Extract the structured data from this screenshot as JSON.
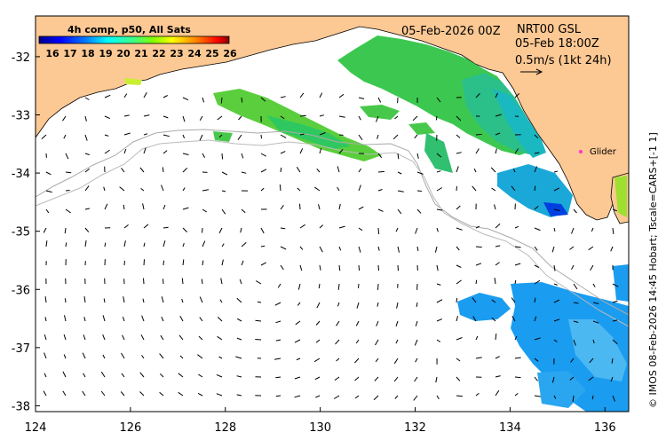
{
  "map": {
    "date_title": "05-Feb-2026 00Z",
    "product": "NRT00 GSL",
    "product_time": "05-Feb 18:00Z",
    "scale_text": "0.5m/s (1kt 24h)",
    "credit": "© IMOS 08-Feb-2026 14:45 Hobart; Tscale=CARS+[-1 1]",
    "glider_label": "Glider",
    "glider_color": "#ff33cc",
    "land_color": "#fcc893",
    "x_ticks": [
      "124",
      "126",
      "128",
      "130",
      "132",
      "134",
      "136"
    ],
    "y_ticks": [
      "-32",
      "-33",
      "-34",
      "-35",
      "-36",
      "-37",
      "-38"
    ],
    "lon_range": [
      124,
      136.5
    ],
    "lat_range": [
      -38.1,
      -31.3
    ],
    "icons": {
      "scale_arrow": "right-arrow",
      "glider": "dot-marker"
    }
  },
  "colorbar": {
    "title": "4h comp, p50, All Sats",
    "labels": [
      "16",
      "17",
      "18",
      "19",
      "20",
      "21",
      "22",
      "23",
      "24",
      "25",
      "26"
    ],
    "colors": [
      "#00008f",
      "#0000ff",
      "#0080ff",
      "#00ffff",
      "#40ff80",
      "#80ff00",
      "#ffff00",
      "#ff8000",
      "#ff0000",
      "#800000"
    ]
  }
}
